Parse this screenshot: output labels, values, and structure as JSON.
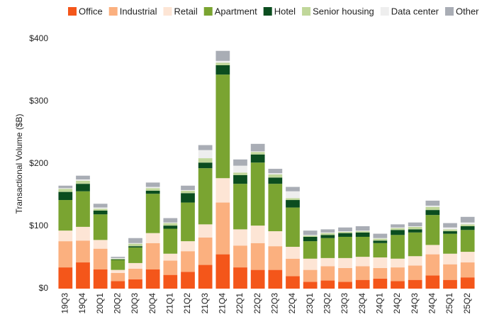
{
  "chart_data": {
    "type": "stacked_bar",
    "ylabel": "Transactional Volume ($B)",
    "categories": [
      "19Q3",
      "19Q4",
      "20Q1",
      "20Q2",
      "20Q3",
      "20Q4",
      "21Q1",
      "21Q2",
      "21Q3",
      "21Q4",
      "22Q1",
      "22Q2",
      "22Q3",
      "22Q4",
      "23Q1",
      "23Q2",
      "23Q3",
      "23Q4",
      "24Q1",
      "24Q2",
      "24Q3",
      "24Q4",
      "25Q1",
      "25Q2"
    ],
    "series": [
      {
        "name": "Office",
        "color": "#f4561a",
        "values": [
          34,
          42,
          31,
          12,
          15,
          31,
          22,
          27,
          38,
          55,
          34,
          30,
          30,
          20,
          11,
          13,
          11,
          14,
          16,
          12,
          14,
          21,
          14,
          18
        ]
      },
      {
        "name": "Industrial",
        "color": "#fbb07f",
        "values": [
          42,
          35,
          33,
          13,
          17,
          42,
          23,
          33,
          44,
          83,
          35,
          43,
          38,
          28,
          19,
          23,
          22,
          22,
          17,
          22,
          23,
          34,
          25,
          24
        ]
      },
      {
        "name": "Retail",
        "color": "#fde5d5",
        "values": [
          17,
          22,
          14,
          5,
          9,
          16,
          11,
          16,
          21,
          39,
          26,
          28,
          24,
          19,
          18,
          13,
          16,
          15,
          17,
          14,
          15,
          15,
          17,
          17
        ]
      },
      {
        "name": "Apartment",
        "color": "#7aa431",
        "values": [
          49,
          57,
          41,
          16,
          25,
          63,
          40,
          62,
          90,
          166,
          73,
          101,
          76,
          63,
          28,
          32,
          34,
          32,
          23,
          38,
          38,
          48,
          32,
          35
        ]
      },
      {
        "name": "Hotel",
        "color": "#0b4d1f",
        "values": [
          13,
          12,
          6,
          1,
          2,
          5,
          5,
          15,
          9,
          15,
          14,
          13,
          10,
          12,
          7,
          5,
          6,
          7,
          4,
          8,
          5,
          8,
          4,
          6
        ]
      },
      {
        "name": "Senior housing",
        "color": "#c0d79a",
        "values": [
          5,
          5,
          3,
          1,
          4,
          4,
          4,
          4,
          7,
          4,
          4,
          4,
          5,
          3,
          2,
          3,
          2,
          2,
          3,
          3,
          4,
          5,
          3,
          3
        ]
      },
      {
        "name": "Data center",
        "color": "#eeeeee",
        "values": [
          1,
          2,
          2,
          1,
          1,
          2,
          1,
          1,
          13,
          3,
          11,
          1,
          2,
          11,
          1,
          1,
          1,
          1,
          1,
          1,
          1,
          2,
          3,
          3
        ]
      },
      {
        "name": "Other",
        "color": "#a9adb5",
        "values": [
          4,
          6,
          6,
          2,
          8,
          7,
          7,
          7,
          8,
          16,
          10,
          12,
          7,
          7,
          7,
          5,
          6,
          7,
          7,
          5,
          6,
          8,
          7,
          9
        ]
      }
    ],
    "ylim": [
      0,
      400
    ],
    "yticks": [
      {
        "value": 0,
        "label": "$0"
      },
      {
        "value": 100,
        "label": "$100"
      },
      {
        "value": 200,
        "label": "$200"
      },
      {
        "value": 300,
        "label": "$300"
      },
      {
        "value": 400,
        "label": "$400"
      }
    ]
  }
}
